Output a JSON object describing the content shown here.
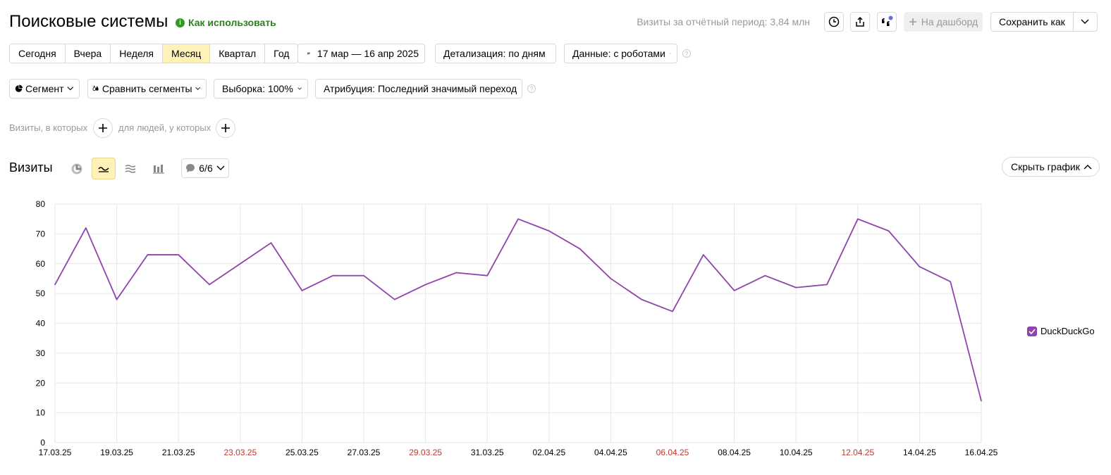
{
  "header": {
    "title": "Поисковые системы",
    "howto_label": "Как использовать",
    "visits_total": "Визиты за отчётный период: 3,84 млн",
    "dashboard_label": "На дашборд",
    "save_as_label": "Сохранить как"
  },
  "periods": {
    "items": [
      "Сегодня",
      "Вчера",
      "Неделя",
      "Месяц",
      "Квартал",
      "Год"
    ],
    "active": "Месяц",
    "date_range": "17 мар — 16 апр 2025",
    "detail": "Детализация: по дням",
    "data": "Данные: с роботами"
  },
  "filters": {
    "segment": "Сегмент",
    "compare": "Сравнить сегменты",
    "sample": "Выборка: 100%",
    "attribution": "Атрибуция: Последний значимый переход",
    "visits_where": "Визиты, в которых",
    "people_where": "для людей, у которых"
  },
  "chart_section": {
    "title": "Визиты",
    "series_count": "6/6",
    "hide_label": "Скрыть график"
  },
  "chart_data": {
    "type": "line",
    "ylim": [
      0,
      80
    ],
    "yticks": [
      0,
      10,
      20,
      30,
      40,
      50,
      60,
      70,
      80
    ],
    "x": [
      "17.03.25",
      "18.03.25",
      "19.03.25",
      "20.03.25",
      "21.03.25",
      "22.03.25",
      "23.03.25",
      "24.03.25",
      "25.03.25",
      "26.03.25",
      "27.03.25",
      "28.03.25",
      "29.03.25",
      "30.03.25",
      "31.03.25",
      "01.04.25",
      "02.04.25",
      "03.04.25",
      "04.04.25",
      "05.04.25",
      "06.04.25",
      "07.04.25",
      "08.04.25",
      "09.04.25",
      "10.04.25",
      "11.04.25",
      "12.04.25",
      "13.04.25",
      "14.04.25",
      "15.04.25",
      "16.04.25"
    ],
    "xtick_labels": [
      "17.03.25",
      "19.03.25",
      "21.03.25",
      "23.03.25",
      "25.03.25",
      "27.03.25",
      "29.03.25",
      "31.03.25",
      "02.04.25",
      "04.04.25",
      "06.04.25",
      "08.04.25",
      "10.04.25",
      "12.04.25",
      "14.04.25",
      "16.04.25"
    ],
    "weekend_ticks": [
      "23.03.25",
      "29.03.25",
      "06.04.25",
      "12.04.25"
    ],
    "series": [
      {
        "name": "DuckDuckGo",
        "color": "#8e44ad",
        "values": [
          53,
          72,
          48,
          63,
          63,
          53,
          60,
          67,
          51,
          56,
          56,
          48,
          53,
          57,
          56,
          75,
          71,
          65,
          55,
          48,
          44,
          63,
          51,
          56,
          52,
          53,
          75,
          71,
          59,
          54,
          14
        ]
      }
    ],
    "grid": true,
    "legend_position": "right"
  },
  "colors": {
    "accent": "#fff2b8",
    "weekend": "#c0392b",
    "line": "#8e44ad",
    "howto": "#2f7d21"
  }
}
